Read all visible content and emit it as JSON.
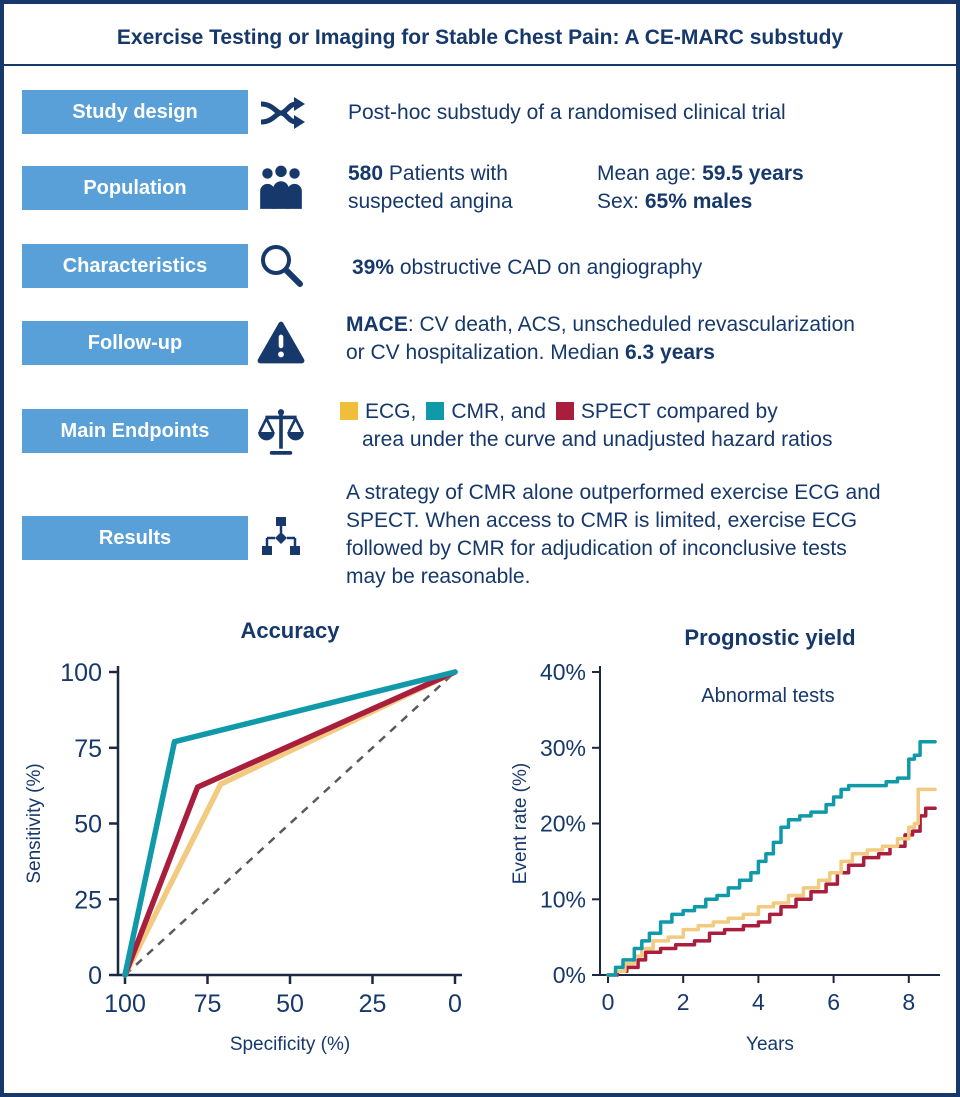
{
  "colors": {
    "navy": "#16386b",
    "box_blue": "#58a0d7",
    "teal": "#0f99a9",
    "crimson": "#a81e3c",
    "gold": "#f0be3a",
    "sand": "#f2ca80",
    "gray_dash": "#5a5a5a",
    "axis": "#1c2740"
  },
  "title": "Exercise Testing or Imaging for Stable Chest Pain: A CE-MARC substudy",
  "icons": {
    "study_design": "shuffle-icon",
    "population": "people-icon",
    "characteristics": "magnifier-icon",
    "follow_up": "warning-icon",
    "endpoints": "scale-icon",
    "results": "flowchart-icon"
  },
  "rows": {
    "study_design": {
      "label": "Study design",
      "text": "Post-hoc substudy of a randomised clinical trial"
    },
    "population": {
      "label": "Population",
      "count": "580",
      "line1_rest": "Patients with",
      "line2": "suspected angina",
      "age_label": "Mean age:",
      "age_value": "59.5 years",
      "sex_label": "Sex:",
      "sex_value": "65% males"
    },
    "characteristics": {
      "label": "Characteristics",
      "pct": "39%",
      "rest": "obstructive CAD on angiography"
    },
    "follow_up": {
      "label": "Follow-up",
      "mace": "MACE",
      "text1": ": CV death, ACS, unscheduled revascularization",
      "text2_pre": "or CV hospitalization. Median ",
      "median": "6.3 years"
    },
    "endpoints": {
      "label": "Main Endpoints",
      "ecg": "ECG,",
      "cmr": "CMR, and",
      "spect": "SPECT compared by",
      "line2": "area under the curve and unadjusted hazard ratios"
    },
    "results": {
      "label": "Results",
      "line1": "A strategy of CMR alone outperformed exercise ECG and",
      "line2": "SPECT. When access to CMR is limited, exercise ECG",
      "line3": "followed by CMR for adjudication of inconclusive tests",
      "line4": "may be reasonable."
    }
  },
  "chart_data": [
    {
      "type": "line",
      "title": "Accuracy",
      "xlabel": "Specificity (%)",
      "ylabel": "Sensitivity (%)",
      "x_reversed": true,
      "xlim": [
        100,
        0
      ],
      "ylim": [
        0,
        100
      ],
      "x_ticks": [
        100,
        75,
        50,
        25,
        0
      ],
      "y_ticks": [
        0,
        25,
        50,
        75,
        100
      ],
      "grid": false,
      "reference_line": {
        "style": "dashed",
        "from": [
          100,
          0
        ],
        "to": [
          0,
          100
        ]
      },
      "series": [
        {
          "name": "ECG",
          "color": "sand",
          "points": [
            [
              100,
              0
            ],
            [
              71,
              63
            ],
            [
              0,
              100
            ]
          ]
        },
        {
          "name": "SPECT",
          "color": "crimson",
          "points": [
            [
              100,
              0
            ],
            [
              78,
              62
            ],
            [
              0,
              100
            ]
          ]
        },
        {
          "name": "CMR",
          "color": "teal",
          "points": [
            [
              100,
              0
            ],
            [
              85,
              77
            ],
            [
              0,
              100
            ]
          ]
        }
      ]
    },
    {
      "type": "line",
      "subtype": "step",
      "title": "Prognostic yield",
      "annotation": "Abnormal tests",
      "xlabel": "Years",
      "ylabel": "Event rate (%)",
      "xlim": [
        0,
        8.8
      ],
      "ylim": [
        0,
        40
      ],
      "x_ticks": [
        0,
        2,
        4,
        6,
        8
      ],
      "y_ticks": [
        0,
        10,
        20,
        30,
        40
      ],
      "y_tick_suffix": "%",
      "grid": false,
      "series": [
        {
          "name": "SPECT",
          "color": "crimson",
          "points": [
            [
              0,
              0
            ],
            [
              0.25,
              0.5
            ],
            [
              0.5,
              1
            ],
            [
              0.8,
              2
            ],
            [
              1,
              3
            ],
            [
              1.4,
              3.5
            ],
            [
              1.8,
              4
            ],
            [
              2.3,
              4.5
            ],
            [
              2.7,
              5.5
            ],
            [
              3.1,
              6
            ],
            [
              3.6,
              6.5
            ],
            [
              4,
              7
            ],
            [
              4.3,
              8
            ],
            [
              4.6,
              9
            ],
            [
              5,
              10
            ],
            [
              5.4,
              11
            ],
            [
              5.8,
              12
            ],
            [
              6.1,
              13.5
            ],
            [
              6.4,
              14.5
            ],
            [
              6.8,
              15.5
            ],
            [
              7.2,
              16
            ],
            [
              7.5,
              17
            ],
            [
              7.9,
              18.5
            ],
            [
              8.1,
              19
            ],
            [
              8.3,
              21
            ],
            [
              8.45,
              22
            ],
            [
              8.7,
              22
            ]
          ]
        },
        {
          "name": "ECG",
          "color": "sand",
          "points": [
            [
              0,
              0
            ],
            [
              0.2,
              0.5
            ],
            [
              0.45,
              1.5
            ],
            [
              0.7,
              2.5
            ],
            [
              0.9,
              3.5
            ],
            [
              1.2,
              4.5
            ],
            [
              1.6,
              5
            ],
            [
              2,
              6
            ],
            [
              2.4,
              6.5
            ],
            [
              2.8,
              7
            ],
            [
              3.2,
              7.5
            ],
            [
              3.6,
              8
            ],
            [
              4,
              9
            ],
            [
              4.4,
              9.5
            ],
            [
              4.8,
              10.5
            ],
            [
              5.2,
              11.5
            ],
            [
              5.6,
              12.5
            ],
            [
              5.9,
              13.5
            ],
            [
              6.2,
              15
            ],
            [
              6.5,
              16
            ],
            [
              6.9,
              16.5
            ],
            [
              7.3,
              17
            ],
            [
              7.7,
              18
            ],
            [
              8,
              19.5
            ],
            [
              8.15,
              20
            ],
            [
              8.25,
              24.5
            ],
            [
              8.7,
              24.5
            ]
          ]
        },
        {
          "name": "CMR",
          "color": "teal",
          "points": [
            [
              0,
              0
            ],
            [
              0.2,
              1
            ],
            [
              0.4,
              2
            ],
            [
              0.7,
              3.5
            ],
            [
              0.9,
              4.5
            ],
            [
              1.1,
              5.5
            ],
            [
              1.4,
              7
            ],
            [
              1.7,
              8
            ],
            [
              2,
              8.5
            ],
            [
              2.3,
              9
            ],
            [
              2.6,
              10
            ],
            [
              2.9,
              10.5
            ],
            [
              3.2,
              11.5
            ],
            [
              3.5,
              12.5
            ],
            [
              3.8,
              13.5
            ],
            [
              4,
              15
            ],
            [
              4.2,
              16
            ],
            [
              4.4,
              17.5
            ],
            [
              4.6,
              19.5
            ],
            [
              4.8,
              20.5
            ],
            [
              5.1,
              21
            ],
            [
              5.4,
              21.5
            ],
            [
              5.8,
              22.5
            ],
            [
              6,
              23.5
            ],
            [
              6.2,
              24.5
            ],
            [
              6.4,
              25
            ],
            [
              7,
              25
            ],
            [
              7.4,
              25.5
            ],
            [
              7.7,
              26
            ],
            [
              8,
              28.5
            ],
            [
              8.15,
              29
            ],
            [
              8.3,
              30.8
            ],
            [
              8.7,
              30.8
            ]
          ]
        }
      ]
    }
  ]
}
